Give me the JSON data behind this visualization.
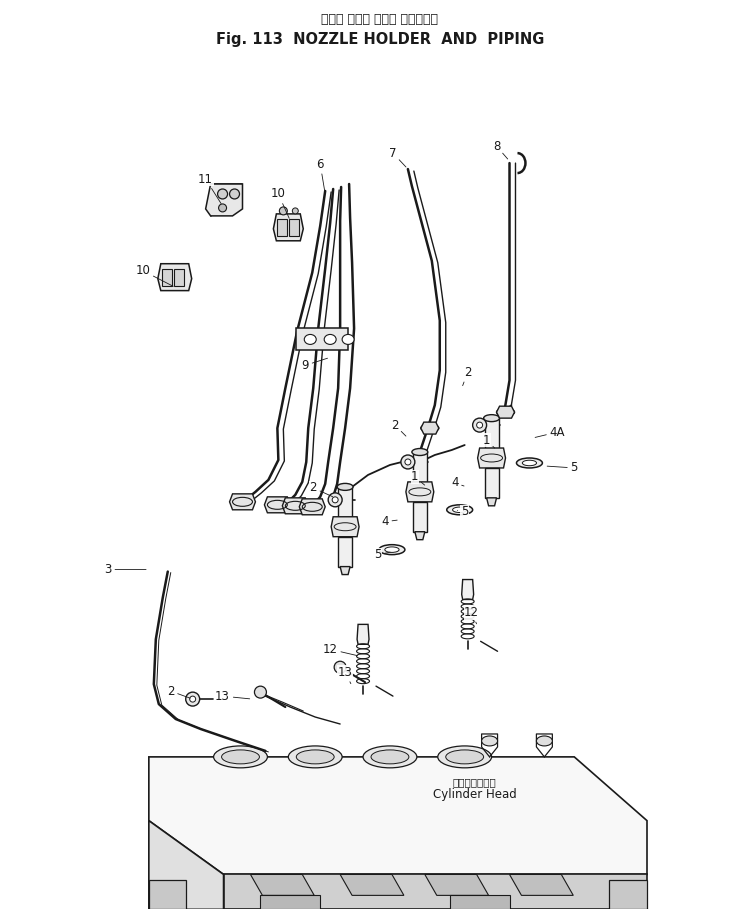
{
  "title_jp": "ノズル ホルダ および パイピング",
  "title_en": "Fig. 113  NOZZLE HOLDER  AND  PIPING",
  "bg": "#ffffff",
  "lc": "#1a1a1a",
  "figsize": [
    7.54,
    9.11
  ],
  "dpi": 100,
  "cyl_head_jp": "シリンダヘッド",
  "cyl_head_en": "Cylinder Head",
  "labels": [
    [
      "11",
      205,
      178,
      222,
      205
    ],
    [
      "10",
      278,
      193,
      290,
      220
    ],
    [
      "10",
      142,
      270,
      175,
      287
    ],
    [
      "6",
      320,
      163,
      325,
      193
    ],
    [
      "7",
      393,
      152,
      408,
      168
    ],
    [
      "8",
      497,
      145,
      510,
      160
    ],
    [
      "9",
      305,
      365,
      330,
      357
    ],
    [
      "2",
      468,
      372,
      462,
      388
    ],
    [
      "2",
      395,
      425,
      408,
      438
    ],
    [
      "2",
      313,
      488,
      335,
      498
    ],
    [
      "2",
      170,
      692,
      192,
      700
    ],
    [
      "1",
      415,
      477,
      427,
      487
    ],
    [
      "1",
      487,
      440,
      497,
      450
    ],
    [
      "4",
      385,
      522,
      400,
      520
    ],
    [
      "4",
      455,
      483,
      467,
      487
    ],
    [
      "4A",
      558,
      432,
      533,
      438
    ],
    [
      "5",
      378,
      555,
      393,
      552
    ],
    [
      "5",
      465,
      512,
      455,
      510
    ],
    [
      "5",
      575,
      468,
      545,
      466
    ],
    [
      "3",
      107,
      570,
      148,
      570
    ],
    [
      "12",
      472,
      613,
      478,
      627
    ],
    [
      "12",
      330,
      650,
      360,
      657
    ],
    [
      "13",
      345,
      673,
      352,
      687
    ],
    [
      "13",
      222,
      697,
      252,
      700
    ]
  ]
}
